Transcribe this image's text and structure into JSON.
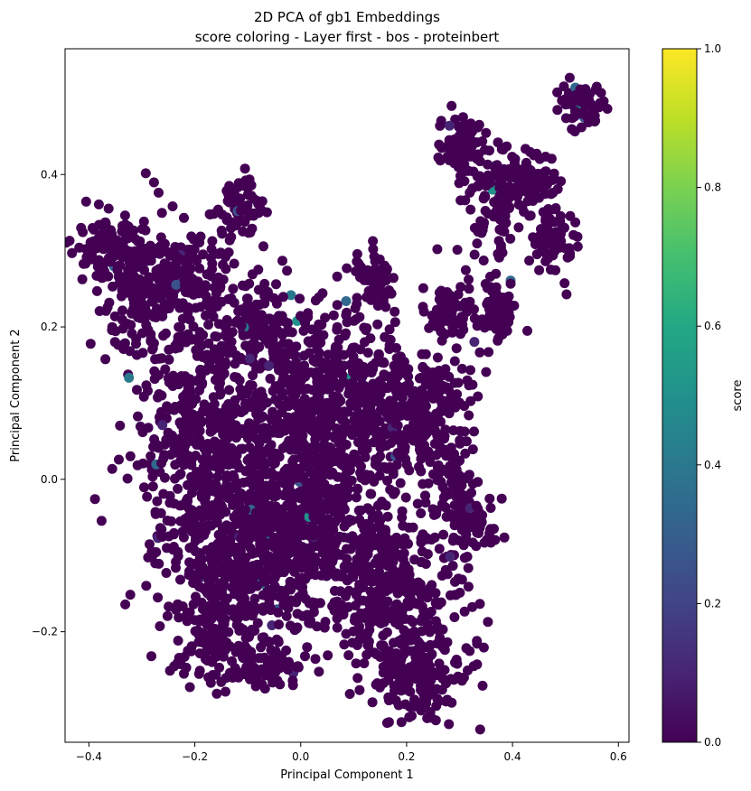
{
  "chart_data": {
    "type": "scatter",
    "title": "2D PCA of gb1 Embeddings",
    "subtitle": "score coloring - Layer first - bos - proteinbert",
    "xlabel": "Principal Component 1",
    "ylabel": "Principal Component 2",
    "xlim": [
      -0.445,
      0.62
    ],
    "ylim": [
      -0.345,
      0.565
    ],
    "x_ticks": [
      -0.4,
      -0.2,
      0.0,
      0.2,
      0.4,
      0.6
    ],
    "x_tick_labels": [
      "−0.4",
      "−0.2",
      "0.0",
      "0.2",
      "0.4",
      "0.6"
    ],
    "y_ticks": [
      -0.2,
      0.0,
      0.2,
      0.4
    ],
    "y_tick_labels": [
      "−0.2",
      "0.0",
      "0.2",
      "0.4"
    ],
    "grid": false,
    "colorbar": {
      "label": "score",
      "range": [
        0.0,
        1.0
      ],
      "ticks": [
        0.0,
        0.2,
        0.4,
        0.6,
        0.8,
        1.0
      ],
      "tick_labels": [
        "0.0",
        "0.2",
        "0.4",
        "0.6",
        "0.8",
        "1.0"
      ],
      "colormap": "viridis",
      "colors": [
        "#440154",
        "#482475",
        "#414487",
        "#355f8d",
        "#2a788e",
        "#21918c",
        "#22a884",
        "#44bf70",
        "#7ad151",
        "#bddf26",
        "#fde725"
      ]
    },
    "point_color_default": "#440154",
    "clusters": [
      {
        "cx": -0.37,
        "cy": 0.31,
        "sx": 0.03,
        "sy": 0.025
      },
      {
        "cx": -0.3,
        "cy": 0.24,
        "sx": 0.04,
        "sy": 0.05
      },
      {
        "cx": -0.22,
        "cy": 0.26,
        "sx": 0.05,
        "sy": 0.03
      },
      {
        "cx": -0.12,
        "cy": 0.36,
        "sx": 0.025,
        "sy": 0.02
      },
      {
        "cx": -0.08,
        "cy": 0.2,
        "sx": 0.05,
        "sy": 0.03
      },
      {
        "cx": -0.2,
        "cy": 0.05,
        "sx": 0.06,
        "sy": 0.1
      },
      {
        "cx": -0.12,
        "cy": -0.05,
        "sx": 0.06,
        "sy": 0.08
      },
      {
        "cx": -0.02,
        "cy": 0.05,
        "sx": 0.08,
        "sy": 0.09
      },
      {
        "cx": 0.08,
        "cy": 0.12,
        "sx": 0.06,
        "sy": 0.05
      },
      {
        "cx": -0.06,
        "cy": -0.12,
        "sx": 0.06,
        "sy": 0.05
      },
      {
        "cx": -0.17,
        "cy": -0.2,
        "sx": 0.03,
        "sy": 0.04
      },
      {
        "cx": -0.06,
        "cy": -0.24,
        "sx": 0.03,
        "sy": 0.02
      },
      {
        "cx": 0.02,
        "cy": -0.05,
        "sx": 0.05,
        "sy": 0.06
      },
      {
        "cx": 0.2,
        "cy": -0.17,
        "sx": 0.06,
        "sy": 0.07
      },
      {
        "cx": 0.22,
        "cy": -0.26,
        "sx": 0.04,
        "sy": 0.025
      },
      {
        "cx": 0.13,
        "cy": -0.12,
        "sx": 0.04,
        "sy": 0.05
      },
      {
        "cx": 0.17,
        "cy": 0.08,
        "sx": 0.05,
        "sy": 0.04
      },
      {
        "cx": 0.25,
        "cy": 0.1,
        "sx": 0.04,
        "sy": 0.03
      },
      {
        "cx": 0.28,
        "cy": 0.0,
        "sx": 0.03,
        "sy": 0.03
      },
      {
        "cx": 0.33,
        "cy": -0.06,
        "sx": 0.02,
        "sy": 0.02
      },
      {
        "cx": 0.14,
        "cy": 0.26,
        "sx": 0.02,
        "sy": 0.02
      },
      {
        "cx": 0.28,
        "cy": 0.22,
        "sx": 0.02,
        "sy": 0.02
      },
      {
        "cx": 0.37,
        "cy": 0.22,
        "sx": 0.02,
        "sy": 0.02
      },
      {
        "cx": 0.3,
        "cy": 0.44,
        "sx": 0.02,
        "sy": 0.02
      },
      {
        "cx": 0.36,
        "cy": 0.37,
        "sx": 0.03,
        "sy": 0.04
      },
      {
        "cx": 0.43,
        "cy": 0.39,
        "sx": 0.03,
        "sy": 0.02
      },
      {
        "cx": 0.48,
        "cy": 0.32,
        "sx": 0.02,
        "sy": 0.025
      },
      {
        "cx": 0.53,
        "cy": 0.49,
        "sx": 0.02,
        "sy": 0.015
      }
    ]
  }
}
